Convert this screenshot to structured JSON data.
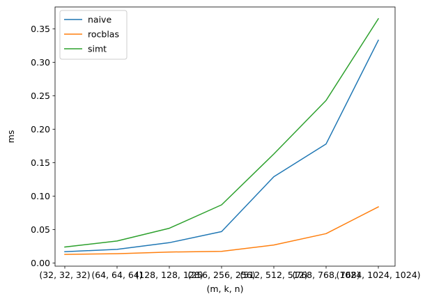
{
  "chart_data": {
    "type": "line",
    "categories": [
      "(32, 32, 32)",
      "(64, 64, 64)",
      "(128, 128, 128)",
      "(256, 256, 256)",
      "(512, 512, 512)",
      "(768, 768, 768)",
      "(1024, 1024, 1024)"
    ],
    "series": [
      {
        "name": "naive",
        "color": "#1f77b4",
        "values": [
          0.017,
          0.0205,
          0.0305,
          0.047,
          0.129,
          0.178,
          0.333
        ]
      },
      {
        "name": "rocblas",
        "color": "#ff7f0e",
        "values": [
          0.013,
          0.014,
          0.0165,
          0.0175,
          0.027,
          0.044,
          0.084
        ]
      },
      {
        "name": "simt",
        "color": "#2ca02c",
        "values": [
          0.024,
          0.033,
          0.052,
          0.087,
          0.163,
          0.243,
          0.365
        ]
      }
    ],
    "xlabel": "(m, k, n)",
    "ylabel": "ms",
    "ylim": [
      -0.0046,
      0.3826
    ],
    "yticks": [
      0.0,
      0.05,
      0.1,
      0.15,
      0.2,
      0.25,
      0.3,
      0.35
    ],
    "ytick_labels": [
      "0.00",
      "0.05",
      "0.10",
      "0.15",
      "0.20",
      "0.25",
      "0.30",
      "0.35"
    ],
    "legend_position": "upper-left",
    "grid": false
  }
}
